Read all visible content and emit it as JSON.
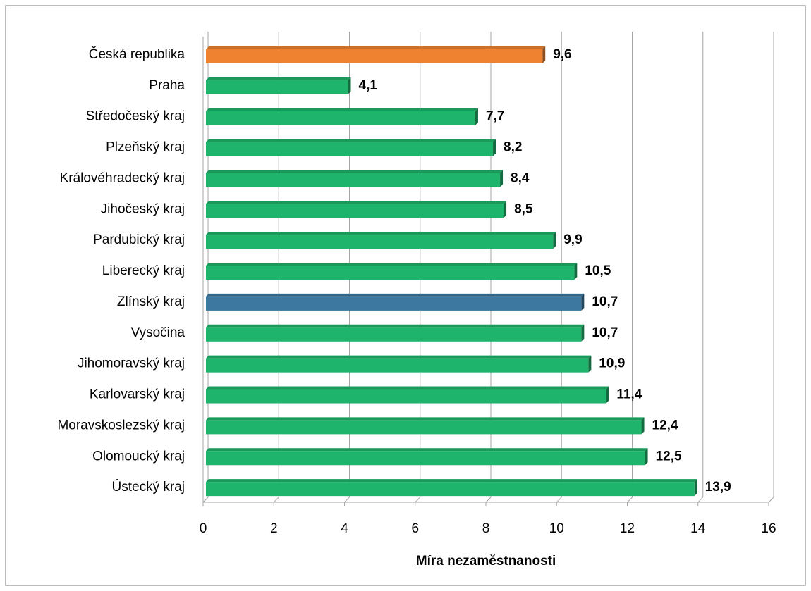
{
  "chart_data": {
    "type": "bar",
    "orientation": "horizontal",
    "categories": [
      "Česká republika",
      "Praha",
      "Středočeský kraj",
      "Plzeňský kraj",
      "Královéhradecký kraj",
      "Jihočeský kraj",
      "Pardubický kraj",
      "Liberecký kraj",
      "Zlínský kraj",
      "Vysočina",
      "Jihomoravský kraj",
      "Karlovarský kraj",
      "Moravskoslezský kraj",
      "Olomoucký kraj",
      "Ústecký kraj"
    ],
    "values": [
      9.6,
      4.1,
      7.7,
      8.2,
      8.4,
      8.5,
      9.9,
      10.5,
      10.7,
      10.7,
      10.9,
      11.4,
      12.4,
      12.5,
      13.9
    ],
    "value_labels": [
      "9,6",
      "4,1",
      "7,7",
      "8,2",
      "8,4",
      "8,5",
      "9,9",
      "10,5",
      "10,7",
      "10,7",
      "10,9",
      "11,4",
      "12,4",
      "12,5",
      "13,9"
    ],
    "colors": [
      "#ef8230",
      "#1fb46b",
      "#1fb46b",
      "#1fb46b",
      "#1fb46b",
      "#1fb46b",
      "#1fb46b",
      "#1fb46b",
      "#3c78a0",
      "#1fb46b",
      "#1fb46b",
      "#1fb46b",
      "#1fb46b",
      "#1fb46b",
      "#1fb46b"
    ],
    "x_label": "Míra nezaměstnanosti",
    "xlim": [
      0,
      16
    ],
    "xticks": [
      0,
      2,
      4,
      6,
      8,
      10,
      12,
      14,
      16
    ],
    "grid": true
  }
}
